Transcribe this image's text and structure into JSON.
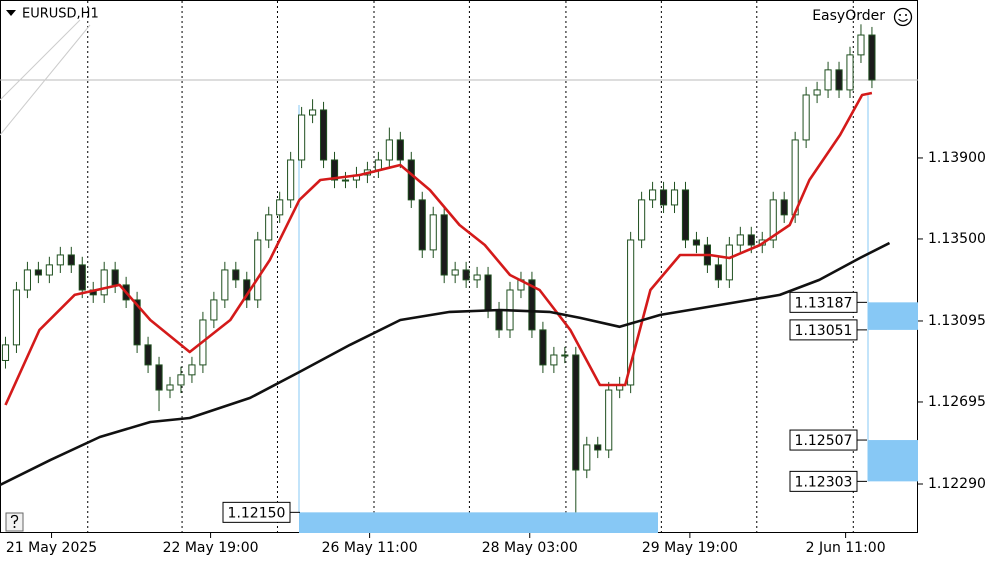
{
  "chart_data": {
    "type": "candlestick",
    "title": "EURUSD,H1",
    "annotation": "EasyOrder",
    "bull_color": "#ffffff",
    "bear_color": "#1b1b1b",
    "wick_color": "#1f4f1f",
    "xlim": [
      -0.5,
      83.2
    ],
    "ylim": [
      1.12048,
      1.1468
    ],
    "xticks": [
      {
        "value": 4.2,
        "label": "21 May 2025"
      },
      {
        "value": 18.7,
        "label": "22 May 19:00"
      },
      {
        "value": 33.2,
        "label": "26 May 11:00"
      },
      {
        "value": 47.8,
        "label": "28 May 03:00"
      },
      {
        "value": 62.4,
        "label": "29 May 19:00"
      },
      {
        "value": 76.6,
        "label": "2 Jun 11:00"
      }
    ],
    "xgrid": [
      7.5,
      16.1,
      24.8,
      33.6,
      42.3,
      51.1,
      59.8,
      68.5,
      77.3
    ],
    "yticks": [
      {
        "value": 1.139,
        "label": "1.13900"
      },
      {
        "value": 1.135,
        "label": "1.13500"
      },
      1.13095,
      1.12695,
      {
        "value": 1.1229,
        "label": "1.12290"
      }
    ],
    "open": [
      1.129,
      1.12977,
      1.13248,
      1.13347,
      1.13322,
      1.13372,
      1.13421,
      1.13372,
      1.13248,
      1.13224,
      1.13347,
      1.13273,
      1.13199,
      1.12977,
      1.12878,
      1.12754,
      1.12779,
      1.12829,
      1.12878,
      1.131,
      1.13199,
      1.13347,
      1.13298,
      1.13199,
      1.13495,
      1.13619,
      1.13693,
      1.1389,
      1.14112,
      1.14137,
      1.1389,
      1.13791,
      1.13791,
      1.13816,
      1.13841,
      1.1389,
      1.13989,
      1.1389,
      1.13693,
      1.13446,
      1.13619,
      1.13322,
      1.13347,
      1.13298,
      1.13322,
      1.13149,
      1.13051,
      1.13248,
      1.13298,
      1.13051,
      1.12878,
      1.12927,
      1.12927,
      1.12359,
      1.12483,
      1.12458,
      1.12754,
      1.12779,
      1.13495,
      1.13693,
      1.13742,
      1.13668,
      1.13742,
      1.13495,
      1.1347,
      1.13372,
      1.13298,
      1.1347,
      1.1352,
      1.1347,
      1.13495,
      1.13693,
      1.13619,
      1.13989,
      1.14211,
      1.14236,
      1.14335,
      1.14236,
      1.14409,
      1.14507
    ],
    "high": [
      1.13017,
      1.13288,
      1.13387,
      1.13387,
      1.13412,
      1.13461,
      1.13461,
      1.13412,
      1.13288,
      1.13387,
      1.13387,
      1.13313,
      1.13239,
      1.13017,
      1.12918,
      1.12819,
      1.12869,
      1.12918,
      1.1314,
      1.13239,
      1.13387,
      1.13387,
      1.13338,
      1.13535,
      1.13659,
      1.13733,
      1.1393,
      1.14152,
      1.1419,
      1.14177,
      1.1393,
      1.13831,
      1.13856,
      1.13881,
      1.1393,
      1.1405,
      1.14029,
      1.1393,
      1.13733,
      1.13659,
      1.13659,
      1.13387,
      1.13387,
      1.13362,
      1.13362,
      1.13189,
      1.13288,
      1.13338,
      1.13338,
      1.13091,
      1.12967,
      1.12967,
      1.12967,
      1.12523,
      1.12523,
      1.12794,
      1.12819,
      1.13535,
      1.13733,
      1.13782,
      1.13782,
      1.13782,
      1.13782,
      1.13535,
      1.1351,
      1.13412,
      1.1351,
      1.1356,
      1.1356,
      1.13535,
      1.13733,
      1.13733,
      1.14029,
      1.14251,
      1.14276,
      1.14375,
      1.14375,
      1.14449,
      1.1456,
      1.14547
    ],
    "low": [
      1.1286,
      1.12937,
      1.13208,
      1.13282,
      1.13282,
      1.13332,
      1.13332,
      1.13208,
      1.13184,
      1.13184,
      1.13233,
      1.13159,
      1.12937,
      1.12838,
      1.1265,
      1.12714,
      1.12739,
      1.12789,
      1.12838,
      1.1306,
      1.13159,
      1.13258,
      1.13159,
      1.13159,
      1.13455,
      1.13579,
      1.13653,
      1.1385,
      1.14072,
      1.1385,
      1.13751,
      1.13751,
      1.13751,
      1.13776,
      1.13801,
      1.1385,
      1.1385,
      1.13653,
      1.13406,
      1.13406,
      1.13282,
      1.13282,
      1.13258,
      1.13258,
      1.13109,
      1.13011,
      1.13011,
      1.13208,
      1.13011,
      1.12838,
      1.12838,
      1.12887,
      1.1215,
      1.12319,
      1.12418,
      1.12418,
      1.12714,
      1.12739,
      1.13455,
      1.13653,
      1.13628,
      1.13628,
      1.13455,
      1.1343,
      1.13332,
      1.13258,
      1.13258,
      1.1343,
      1.1343,
      1.1343,
      1.13455,
      1.13579,
      1.13579,
      1.13949,
      1.14171,
      1.14196,
      1.14196,
      1.14196,
      1.14369,
      1.14245
    ],
    "close": [
      1.12977,
      1.13248,
      1.13347,
      1.13322,
      1.13372,
      1.13421,
      1.13372,
      1.13248,
      1.13224,
      1.13347,
      1.13273,
      1.13199,
      1.12977,
      1.12878,
      1.12754,
      1.12779,
      1.12829,
      1.12878,
      1.131,
      1.13199,
      1.13347,
      1.13298,
      1.13199,
      1.13495,
      1.13619,
      1.13693,
      1.1389,
      1.14112,
      1.14137,
      1.1389,
      1.13791,
      1.13791,
      1.13816,
      1.13841,
      1.1389,
      1.13989,
      1.1389,
      1.13693,
      1.13446,
      1.13619,
      1.13322,
      1.13347,
      1.13298,
      1.13322,
      1.13149,
      1.13051,
      1.13248,
      1.13298,
      1.13051,
      1.12878,
      1.12927,
      1.12927,
      1.12359,
      1.12483,
      1.12458,
      1.12754,
      1.12779,
      1.13495,
      1.13693,
      1.13742,
      1.13668,
      1.13742,
      1.13495,
      1.1347,
      1.13372,
      1.13298,
      1.1347,
      1.1352,
      1.1347,
      1.13495,
      1.13693,
      1.13619,
      1.13989,
      1.14211,
      1.14236,
      1.14335,
      1.14236,
      1.14409,
      1.14507,
      1.14285
    ],
    "series": [
      {
        "color": "#d41a1a",
        "width": 2.6,
        "x": [
          0,
          3.1,
          6.3,
          10.4,
          13.2,
          16.8,
          20.5,
          24.1,
          26.8,
          28.7,
          32.3,
          36.0,
          38.7,
          41.4,
          43.7,
          46.0,
          48.7,
          51.5,
          54.2,
          56.5,
          58.8,
          61.5,
          64.2,
          66.0,
          68.8,
          71.5,
          73.3,
          76.1,
          78.1,
          79.0
        ],
        "values": [
          1.1268,
          1.13051,
          1.13224,
          1.13273,
          1.131,
          1.12942,
          1.131,
          1.13396,
          1.13693,
          1.13791,
          1.13816,
          1.13865,
          1.13742,
          1.13569,
          1.1347,
          1.13322,
          1.13248,
          1.13051,
          1.12779,
          1.12779,
          1.13248,
          1.13421,
          1.13421,
          1.13406,
          1.1347,
          1.13569,
          1.13791,
          1.14014,
          1.14211,
          1.14221
        ]
      },
      {
        "color": "#111111",
        "width": 2.6,
        "x": [
          -0.5,
          4.1,
          8.6,
          13.2,
          16.8,
          22.3,
          26.8,
          31.4,
          36.0,
          40.5,
          45.1,
          49.6,
          52.4,
          56.0,
          59.7,
          65.1,
          70.6,
          74.2,
          77.9,
          80.6
        ],
        "values": [
          1.12285,
          1.12409,
          1.12522,
          1.12596,
          1.12616,
          1.12715,
          1.12843,
          1.12977,
          1.131,
          1.1314,
          1.13149,
          1.1314,
          1.1311,
          1.13066,
          1.13125,
          1.13174,
          1.13224,
          1.13298,
          1.13406,
          1.1348
        ]
      }
    ],
    "levels": [
      1.13187,
      1.13051,
      1.12507,
      1.12303,
      {
        "value": 1.1215,
        "label": "1.12150"
      }
    ],
    "zone_color": "#87c8f5"
  }
}
